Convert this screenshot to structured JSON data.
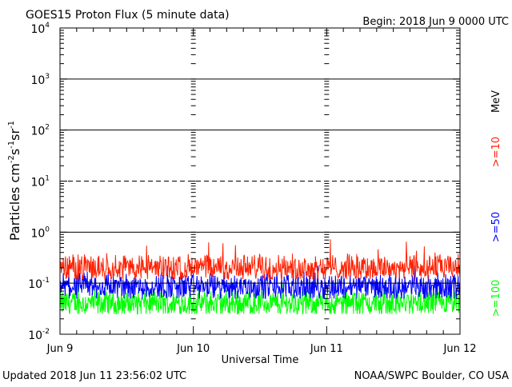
{
  "chart_data": {
    "type": "line",
    "title": "GOES15 Proton Flux (5 minute data)",
    "begin_label": "Begin: 2018 Jun 9 0000 UTC",
    "xlabel": "Universal Time",
    "ylabel_main": "Particles cm",
    "ylabel_exponents": [
      "-2",
      "-1",
      "-1"
    ],
    "ylabel_units": [
      "s",
      "sr"
    ],
    "x_tick_labels": [
      "Jun 9",
      "Jun 10",
      "Jun 11",
      "Jun 12"
    ],
    "xlim_days": [
      0,
      3
    ],
    "y_scale": "log",
    "ylim": [
      0.01,
      10000
    ],
    "y_tick_labels": [
      {
        "base": "10",
        "exp": "4"
      },
      {
        "base": "10",
        "exp": "3"
      },
      {
        "base": "10",
        "exp": "2"
      },
      {
        "base": "10",
        "exp": "1"
      },
      {
        "base": "10",
        "exp": "0"
      },
      {
        "base": "10",
        "exp": "-1"
      },
      {
        "base": "10",
        "exp": "-2"
      }
    ],
    "threshold_lines": [
      {
        "value": 1000,
        "style": "solid"
      },
      {
        "value": 100,
        "style": "solid"
      },
      {
        "value": 10,
        "style": "dashed"
      },
      {
        "value": 1,
        "style": "solid"
      },
      {
        "value": 0.1,
        "style": "solid"
      }
    ],
    "legend_unit": "MeV",
    "series": [
      {
        "name": ">=10",
        "color": "#ff2000",
        "typical": 0.2,
        "min": 0.12,
        "max": 0.75
      },
      {
        "name": ">=50",
        "color": "#0000ff",
        "typical": 0.085,
        "min": 0.05,
        "max": 0.22
      },
      {
        "name": ">=100",
        "color": "#00ff00",
        "typical": 0.04,
        "min": 0.025,
        "max": 0.1
      }
    ],
    "footer_left": "Updated 2018 Jun 11 23:56:02 UTC",
    "footer_right": "NOAA/SWPC Boulder, CO USA"
  }
}
